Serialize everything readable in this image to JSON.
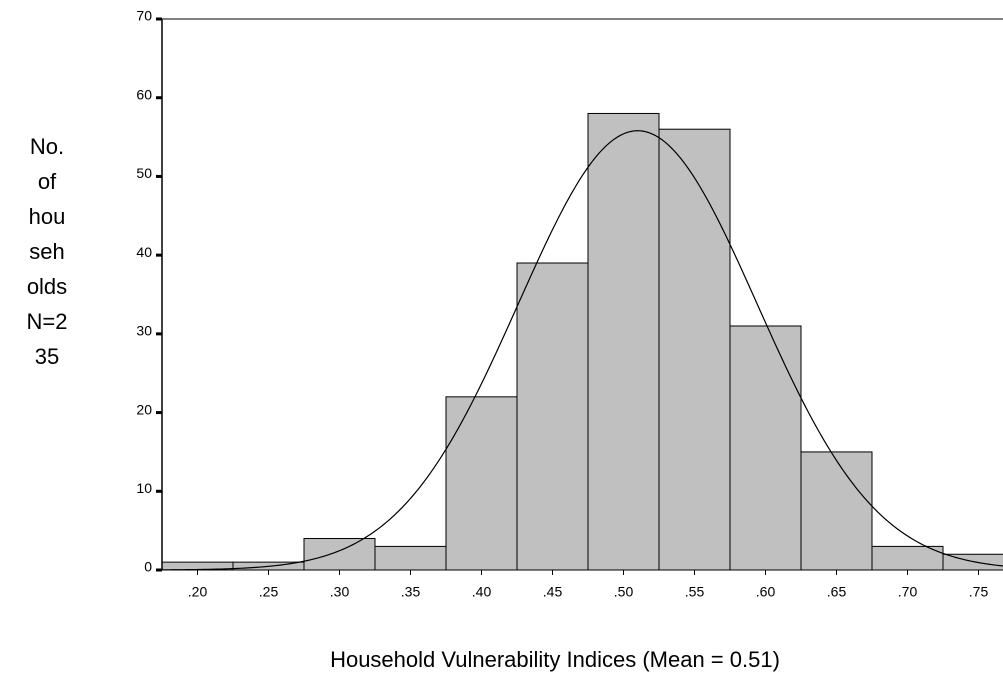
{
  "chart_data": {
    "type": "histogram",
    "xlabel": "Household Vulnerability Indices (Mean = 0.51)",
    "ylabel": [
      "No.",
      "of",
      "hou",
      "seh",
      "olds",
      "N=2",
      "35"
    ],
    "bins": [
      0.175,
      0.225,
      0.275,
      0.325,
      0.375,
      0.425,
      0.475,
      0.525,
      0.575,
      0.625,
      0.675,
      0.725,
      0.775
    ],
    "values": [
      1,
      1,
      4,
      3,
      22,
      39,
      58,
      56,
      31,
      15,
      3,
      2
    ],
    "color": "#c0c0c0",
    "normal_curve": {
      "mean": 0.51,
      "std": 0.084
    },
    "xlim": [
      0.175,
      0.775
    ],
    "ylim": [
      0,
      70
    ],
    "xticks": [
      {
        "value": 0.2,
        "label": ".20"
      },
      {
        "value": 0.25,
        "label": ".25"
      },
      {
        "value": 0.3,
        "label": ".30"
      },
      {
        "value": 0.35,
        "label": ".35"
      },
      {
        "value": 0.4,
        "label": ".40"
      },
      {
        "value": 0.45,
        "label": ".45"
      },
      {
        "value": 0.5,
        "label": ".50"
      },
      {
        "value": 0.55,
        "label": ".55"
      },
      {
        "value": 0.6,
        "label": ".60"
      },
      {
        "value": 0.65,
        "label": ".65"
      },
      {
        "value": 0.7,
        "label": ".70"
      },
      {
        "value": 0.75,
        "label": ".75"
      }
    ],
    "yticks": [
      0,
      10,
      20,
      30,
      40,
      50,
      60,
      70
    ]
  }
}
